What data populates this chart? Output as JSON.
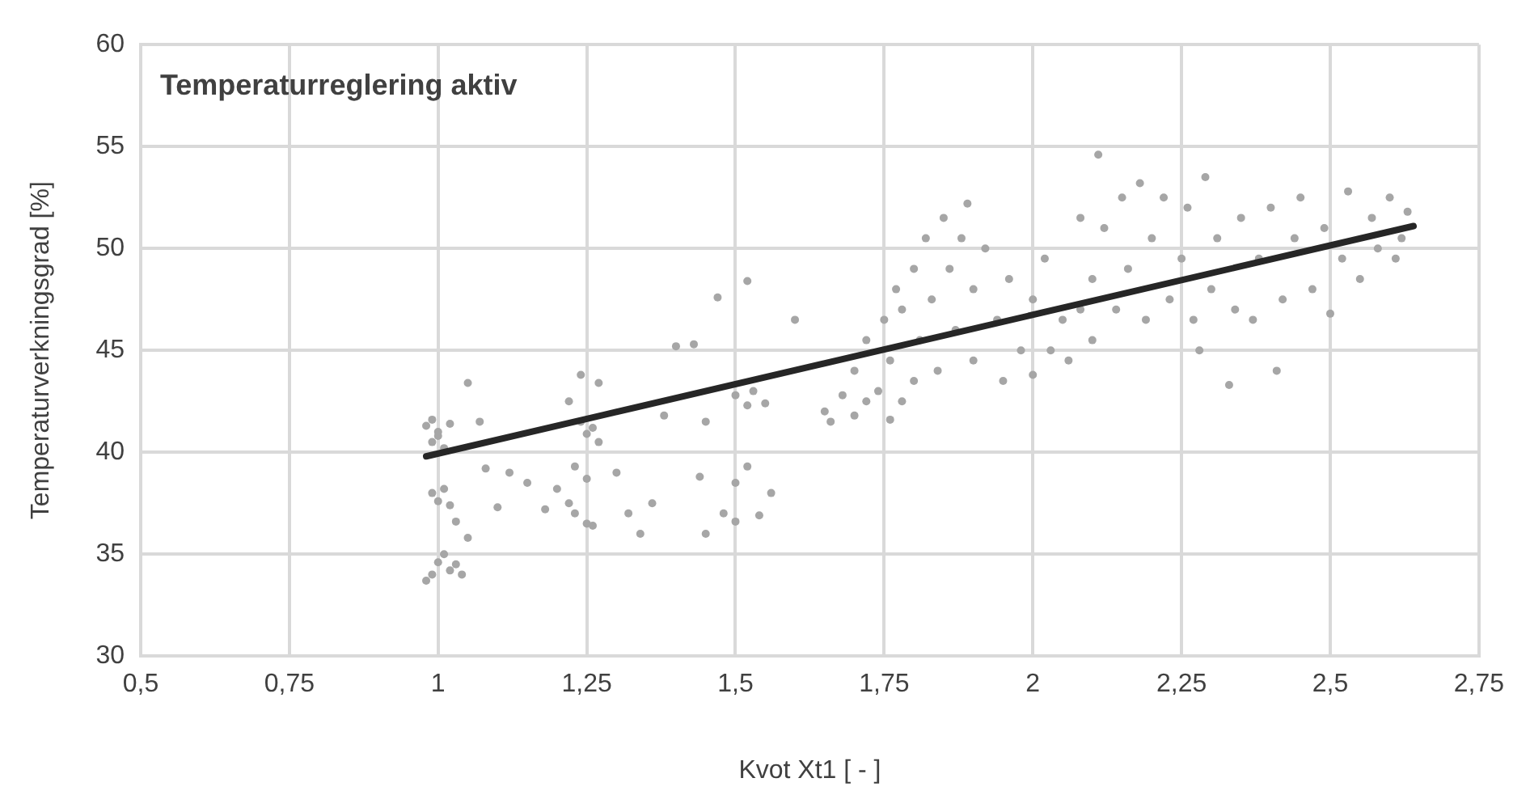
{
  "chart_data": {
    "type": "scatter",
    "title": "Temperaturreglering aktiv",
    "xlabel": "Kvot Xt1 [ - ]",
    "ylabel": "Temperaturverkningsgrad [%]",
    "xlim": [
      0.5,
      2.75
    ],
    "xticks": [
      {
        "value": 0.5,
        "label": "0,5"
      },
      {
        "value": 0.75,
        "label": "0,75"
      },
      1,
      {
        "value": 1.25,
        "label": "1,25"
      },
      {
        "value": 1.5,
        "label": "1,5"
      },
      {
        "value": 1.75,
        "label": "1,75"
      },
      2,
      {
        "value": 2.25,
        "label": "2,25"
      },
      {
        "value": 2.5,
        "label": "2,5"
      },
      {
        "value": 2.75,
        "label": "2,75"
      }
    ],
    "ylim": [
      30,
      60
    ],
    "yticks": [
      30,
      35,
      40,
      45,
      50,
      55,
      60
    ],
    "grid": true,
    "legend": false,
    "series": [
      {
        "marker": "circle",
        "color": "#a6a6a6",
        "x": [
          0.98,
          0.99,
          1.0,
          1.01,
          0.99,
          1.0,
          1.02,
          0.99,
          1.0,
          1.01,
          0.98,
          1.02,
          1.04,
          1.03,
          0.99,
          1.0,
          1.01,
          1.02,
          1.03,
          1.05,
          1.05,
          1.07,
          1.08,
          1.1,
          1.12,
          1.15,
          1.18,
          1.2,
          1.22,
          1.23,
          1.23,
          1.25,
          1.26,
          1.25,
          1.25,
          1.24,
          1.26,
          1.27,
          1.24,
          1.27,
          1.22,
          1.3,
          1.32,
          1.34,
          1.36,
          1.38,
          1.4,
          1.44,
          1.45,
          1.45,
          1.48,
          1.5,
          1.5,
          1.52,
          1.54,
          1.47,
          1.43,
          1.52,
          1.5,
          1.52,
          1.53,
          1.55,
          1.56,
          1.6,
          1.65,
          1.66,
          1.68,
          1.7,
          1.7,
          1.72,
          1.72,
          1.74,
          1.75,
          1.76,
          1.76,
          1.77,
          1.78,
          1.78,
          1.8,
          1.8,
          1.81,
          1.82,
          1.83,
          1.84,
          1.85,
          1.86,
          1.87,
          1.88,
          1.89,
          1.9,
          1.9,
          1.92,
          1.94,
          1.95,
          1.96,
          1.98,
          2.0,
          2.0,
          2.02,
          2.03,
          2.05,
          2.06,
          2.08,
          2.08,
          2.1,
          2.1,
          2.11,
          2.12,
          2.14,
          2.15,
          2.16,
          2.18,
          2.19,
          2.2,
          2.22,
          2.23,
          2.25,
          2.26,
          2.27,
          2.28,
          2.29,
          2.3,
          2.31,
          2.33,
          2.34,
          2.35,
          2.37,
          2.38,
          2.4,
          2.41,
          2.42,
          2.44,
          2.45,
          2.47,
          2.49,
          2.5,
          2.52,
          2.53,
          2.55,
          2.57,
          2.58,
          2.6,
          2.61,
          2.63,
          2.62
        ],
        "values": [
          41.3,
          40.5,
          41.0,
          40.2,
          41.6,
          40.8,
          41.4,
          34.0,
          34.6,
          35.0,
          33.7,
          34.2,
          34.0,
          34.5,
          38.0,
          37.6,
          38.2,
          37.4,
          36.6,
          35.8,
          43.4,
          41.5,
          39.2,
          37.3,
          39.0,
          38.5,
          37.2,
          38.2,
          37.5,
          37.0,
          39.3,
          36.5,
          36.4,
          38.7,
          40.9,
          41.5,
          41.2,
          40.5,
          43.8,
          43.4,
          42.5,
          39.0,
          37.0,
          36.0,
          37.5,
          41.8,
          45.2,
          38.8,
          41.5,
          36.0,
          37.0,
          38.5,
          36.6,
          39.3,
          36.9,
          47.6,
          45.3,
          48.4,
          42.8,
          42.3,
          43.0,
          42.4,
          38.0,
          46.5,
          42.0,
          41.5,
          42.8,
          41.8,
          44.0,
          42.5,
          45.5,
          43.0,
          46.5,
          41.6,
          44.5,
          48.0,
          42.5,
          47.0,
          43.5,
          49.0,
          45.5,
          50.5,
          47.5,
          44.0,
          51.5,
          49.0,
          46.0,
          50.5,
          52.2,
          48.0,
          44.5,
          50.0,
          46.5,
          43.5,
          48.5,
          45.0,
          47.5,
          43.8,
          49.5,
          45.0,
          46.5,
          44.5,
          47.0,
          51.5,
          45.5,
          48.5,
          54.6,
          51.0,
          47.0,
          52.5,
          49.0,
          53.2,
          46.5,
          50.5,
          52.5,
          47.5,
          49.5,
          52.0,
          46.5,
          45.0,
          53.5,
          48.0,
          50.5,
          43.3,
          47.0,
          51.5,
          46.5,
          49.5,
          52.0,
          44.0,
          47.5,
          50.5,
          52.5,
          48.0,
          51.0,
          46.8,
          49.5,
          52.8,
          48.5,
          51.5,
          50.0,
          52.5,
          49.5,
          51.8,
          50.5
        ]
      },
      {
        "type": "line",
        "marker": "none",
        "color": "#262626",
        "x": [
          0.98,
          2.64
        ],
        "values": [
          39.8,
          51.1
        ]
      }
    ]
  }
}
